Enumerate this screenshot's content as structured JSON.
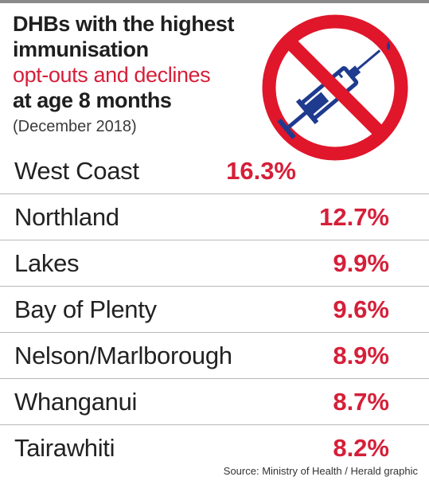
{
  "header": {
    "title_line1": "DHBs with the highest",
    "title_line2": "immunisation",
    "title_line3": "opt-outs and declines",
    "title_line4": "at age 8 months",
    "subtitle": "(December 2018)"
  },
  "icon": {
    "name": "no-vaccine-syringe-icon",
    "ring_color": "#e0162b",
    "syringe_color": "#1f3b8f"
  },
  "colors": {
    "accent": "#d51f39",
    "text": "#222222",
    "divider": "#b8b8b8"
  },
  "chart_data": {
    "type": "table",
    "title": "DHBs with the highest immunisation opt-outs and declines at age 8 months",
    "subtitle": "(December 2018)",
    "columns": [
      "DHB",
      "Opt-outs and declines"
    ],
    "rows": [
      {
        "label": "West Coast",
        "value": 16.3,
        "display": "16.3%"
      },
      {
        "label": "Northland",
        "value": 12.7,
        "display": "12.7%"
      },
      {
        "label": "Lakes",
        "value": 9.9,
        "display": "9.9%"
      },
      {
        "label": "Bay of Plenty",
        "value": 9.6,
        "display": "9.6%"
      },
      {
        "label": "Nelson/Marlborough",
        "value": 8.9,
        "display": "8.9%"
      },
      {
        "label": "Whanganui",
        "value": 8.7,
        "display": "8.7%"
      },
      {
        "label": "Tairawhiti",
        "value": 8.2,
        "display": "8.2%"
      }
    ]
  },
  "source": "Source: Ministry of Health / Herald graphic"
}
